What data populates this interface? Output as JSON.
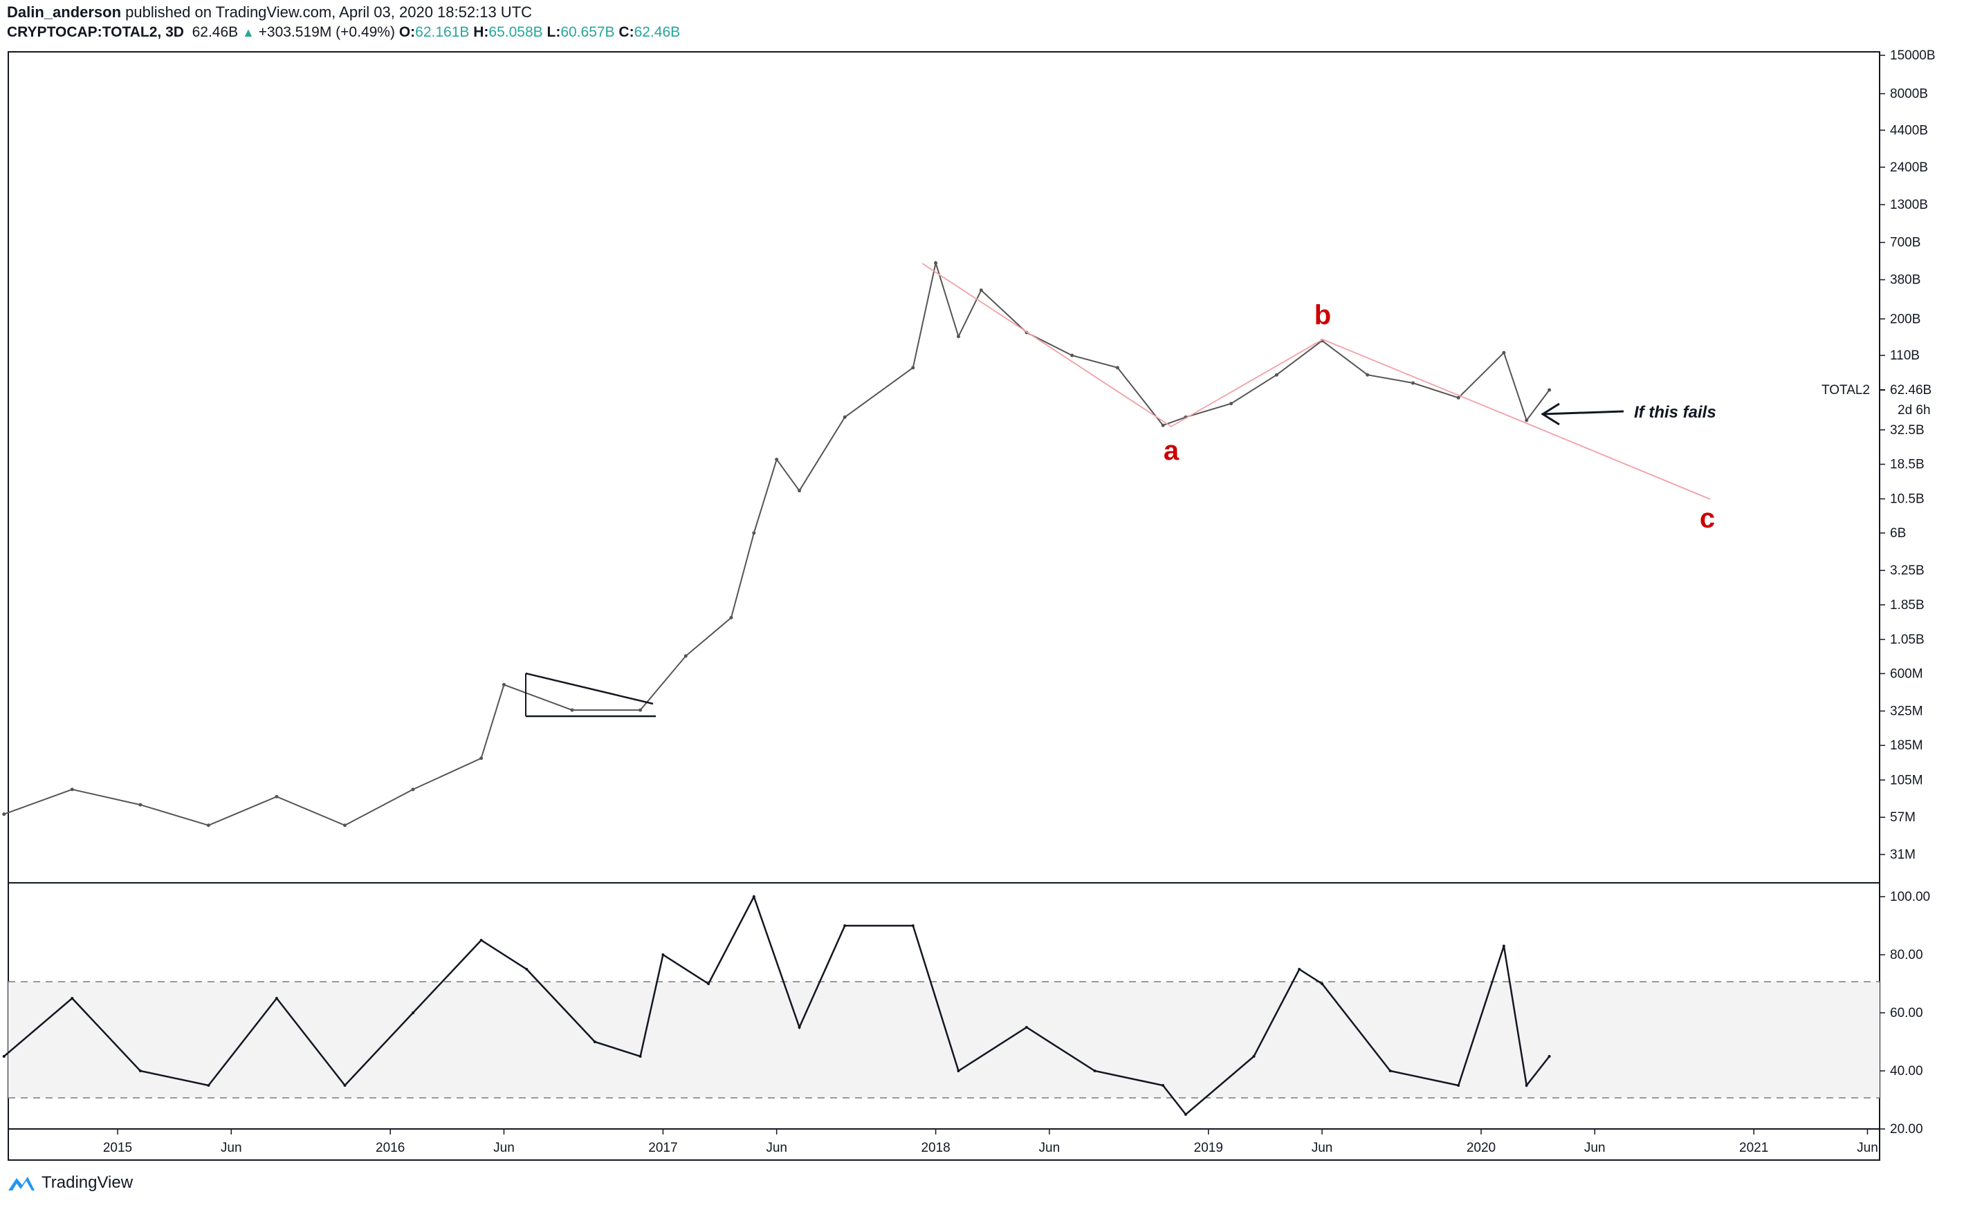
{
  "header": {
    "author": "Dalin_anderson",
    "published": " published on TradingView.com, April 03, 2020 18:52:13 UTC",
    "symbol": "CRYPTOCAP:TOTAL2, 3D",
    "last": "62.46B",
    "change": "+303.519M (+0.49%)",
    "open_label": "O:",
    "open": "62.161B",
    "high_label": "H:",
    "high": "65.058B",
    "low_label": "L:",
    "low": "60.657B",
    "close_label": "C:",
    "close": "62.46B"
  },
  "price_axis": {
    "ticks": [
      "15000B",
      "8000B",
      "4400B",
      "2400B",
      "1300B",
      "700B",
      "380B",
      "200B",
      "110B",
      "62.46B",
      "32.5B",
      "18.5B",
      "10.5B",
      "6B",
      "3.25B",
      "1.85B",
      "1.05B",
      "600M",
      "325M",
      "185M",
      "105M",
      "57M",
      "31M"
    ],
    "tag_label": "TOTAL2",
    "tag_value": "62.46B",
    "countdown": "2d 6h"
  },
  "rsi_axis": {
    "ticks": [
      "100.00",
      "80.00",
      "60.00",
      "40.00",
      "20.00"
    ]
  },
  "time_axis": {
    "ticks": [
      "2015",
      "Jun",
      "2016",
      "Jun",
      "2017",
      "Jun",
      "2018",
      "Jun",
      "2019",
      "Jun",
      "2020",
      "Jun",
      "2021",
      "Jun"
    ]
  },
  "annotations": {
    "wave_a": "a",
    "wave_b": "b",
    "wave_c": "c",
    "note": "If this fails"
  },
  "colors": {
    "up": "#26a69a",
    "wave": "#cc0000",
    "line": "#131722",
    "rsi_band": "#f3f3f3"
  },
  "footer": {
    "brand": "TradingView"
  },
  "chart_data": [
    {
      "type": "line",
      "title": "CRYPTOCAP:TOTAL2, 3D",
      "scale": "log",
      "x": [
        "2014-08",
        "2014-11",
        "2015-02",
        "2015-05",
        "2015-08",
        "2015-11",
        "2016-02",
        "2016-05",
        "2016-06",
        "2016-09",
        "2016-12",
        "2017-02",
        "2017-04",
        "2017-05",
        "2017-06",
        "2017-07",
        "2017-09",
        "2017-12",
        "2018-01",
        "2018-02",
        "2018-03",
        "2018-05",
        "2018-07",
        "2018-09",
        "2018-11",
        "2018-12",
        "2019-02",
        "2019-04",
        "2019-06",
        "2019-08",
        "2019-10",
        "2019-12",
        "2020-02",
        "2020-03",
        "2020-04"
      ],
      "values": [
        0.06,
        0.09,
        0.07,
        0.05,
        0.08,
        0.05,
        0.09,
        0.15,
        0.5,
        0.33,
        0.33,
        0.8,
        1.5,
        6,
        20,
        12,
        40,
        90,
        500,
        150,
        320,
        160,
        110,
        90,
        35,
        40,
        50,
        80,
        140,
        80,
        70,
        55,
        115,
        38,
        62.46
      ],
      "ylim": [
        0.025,
        15000
      ]
    },
    {
      "type": "line",
      "title": "RSI",
      "x": [
        "2014-08",
        "2014-11",
        "2015-02",
        "2015-05",
        "2015-08",
        "2015-11",
        "2016-02",
        "2016-05",
        "2016-07",
        "2016-10",
        "2016-12",
        "2017-01",
        "2017-03",
        "2017-05",
        "2017-07",
        "2017-09",
        "2017-12",
        "2018-02",
        "2018-05",
        "2018-08",
        "2018-11",
        "2018-12",
        "2019-03",
        "2019-05",
        "2019-06",
        "2019-09",
        "2019-12",
        "2020-02",
        "2020-03",
        "2020-04"
      ],
      "values": [
        45,
        65,
        40,
        35,
        65,
        35,
        60,
        85,
        75,
        50,
        45,
        80,
        70,
        100,
        55,
        90,
        90,
        40,
        55,
        40,
        35,
        25,
        45,
        75,
        70,
        40,
        35,
        83,
        35,
        45
      ],
      "ylim": [
        20,
        100
      ],
      "bands": [
        30,
        70
      ]
    }
  ]
}
